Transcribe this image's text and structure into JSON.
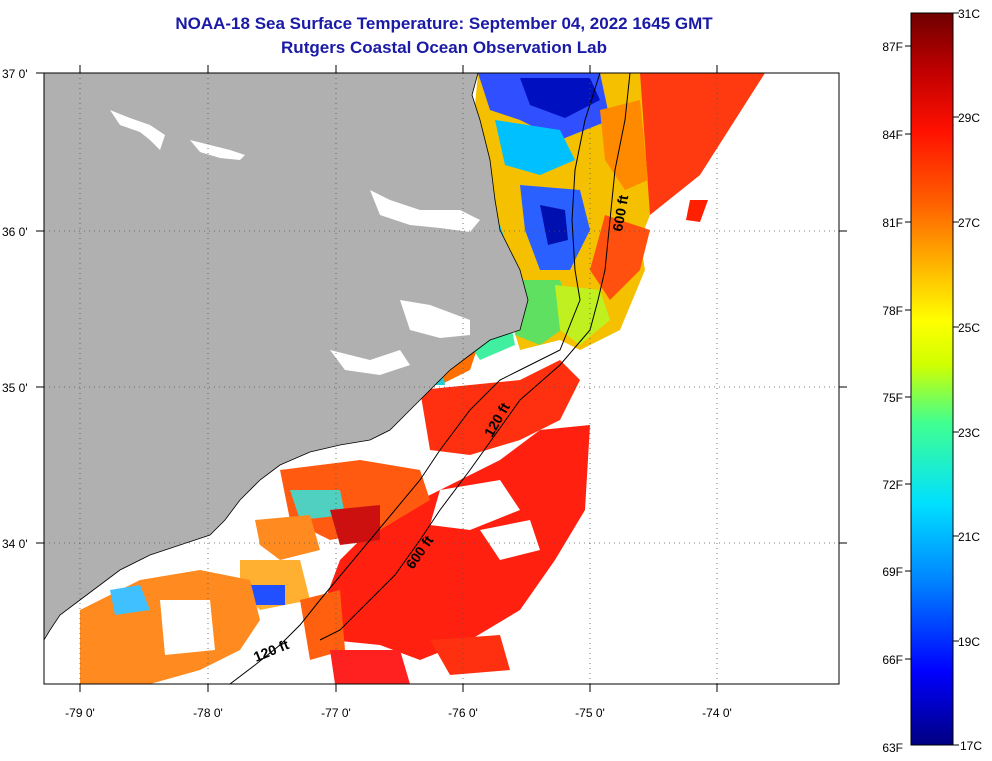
{
  "title": {
    "line1": "NOAA-18 Sea Surface Temperature:  September 04, 2022 1645 GMT",
    "line2": "Rutgers Coastal Ocean Observation Lab"
  },
  "latitude_labels": [
    "37 0'",
    "36 0'",
    "35 0'",
    "34 0'"
  ],
  "longitude_labels": [
    "-79 0'",
    "-78 0'",
    "-77 0'",
    "-76 0'",
    "-75 0'",
    "-74 0'"
  ],
  "contour_labels": [
    "600 ft",
    "120 ft",
    "600 ft",
    "120 ft"
  ],
  "colorbar": {
    "fahrenheit_labels": [
      "87F",
      "84F",
      "81F",
      "78F",
      "75F",
      "72F",
      "69F",
      "66F",
      "63F"
    ],
    "celsius_labels": [
      "31C",
      "29C",
      "27C",
      "25C",
      "23C",
      "21C",
      "19C",
      "17C"
    ]
  },
  "colors": {
    "land": "#b0b0b0",
    "no_data": "#ffffff",
    "title": "#1a1aa6",
    "scale": [
      "#000080",
      "#0000ff",
      "#0080ff",
      "#00e0ff",
      "#40ff90",
      "#d0ff00",
      "#ffff00",
      "#ffb000",
      "#ff6000",
      "#ff0000",
      "#b00000",
      "#700000"
    ]
  }
}
